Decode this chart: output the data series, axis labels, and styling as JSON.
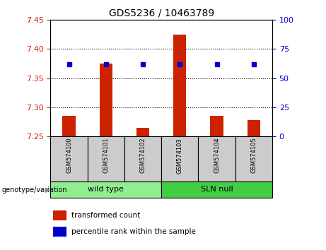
{
  "title": "GDS5236 / 10463789",
  "samples": [
    "GSM574100",
    "GSM574101",
    "GSM574102",
    "GSM574103",
    "GSM574104",
    "GSM574105"
  ],
  "bar_color": "#CC2200",
  "dot_color": "#0000CC",
  "bar_values": [
    7.285,
    7.375,
    7.265,
    7.425,
    7.285,
    7.278
  ],
  "dot_values_pct": [
    62,
    62,
    62,
    62,
    62,
    62
  ],
  "ylim_left": [
    7.25,
    7.45
  ],
  "ylim_right": [
    0,
    100
  ],
  "yticks_left": [
    7.25,
    7.3,
    7.35,
    7.4,
    7.45
  ],
  "yticks_right": [
    0,
    25,
    50,
    75,
    100
  ],
  "bar_width": 0.35,
  "tick_label_area_color": "#cccccc",
  "wild_type_color": "#90EE90",
  "sln_null_color": "#44CC44",
  "legend_items": [
    "transformed count",
    "percentile rank within the sample"
  ],
  "genotype_label": "genotype/variation",
  "axis_label_color_left": "#CC2200",
  "axis_label_color_right": "#0000CC"
}
